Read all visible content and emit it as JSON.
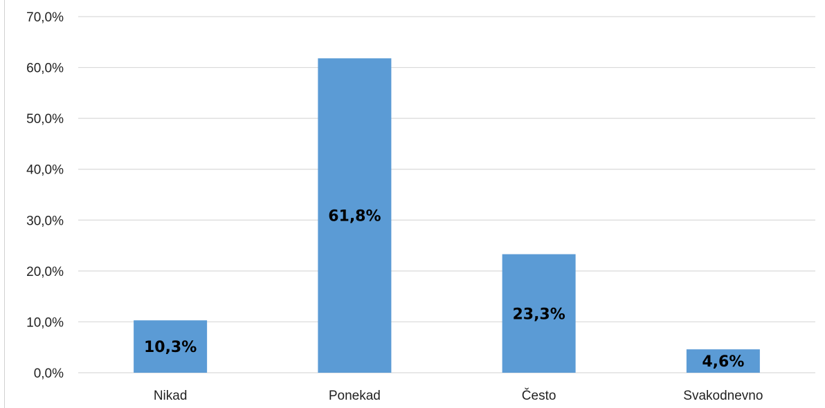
{
  "chart_data": {
    "type": "bar",
    "categories": [
      "Nikad",
      "Ponekad",
      "Često",
      "Svakodnevno"
    ],
    "values": [
      10.3,
      61.8,
      23.3,
      4.6
    ],
    "value_labels": [
      "10,3%",
      "61,8%",
      "23,3%",
      "4,6%"
    ],
    "y_ticks": [
      0,
      10,
      20,
      30,
      40,
      50,
      60,
      70
    ],
    "y_tick_labels": [
      "0,0%",
      "10,0%",
      "20,0%",
      "30,0%",
      "40,0%",
      "50,0%",
      "60,0%",
      "70,0%"
    ],
    "ylim": [
      0,
      70
    ],
    "grid": true,
    "legend": "none",
    "bar_color": "#5b9bd5"
  }
}
